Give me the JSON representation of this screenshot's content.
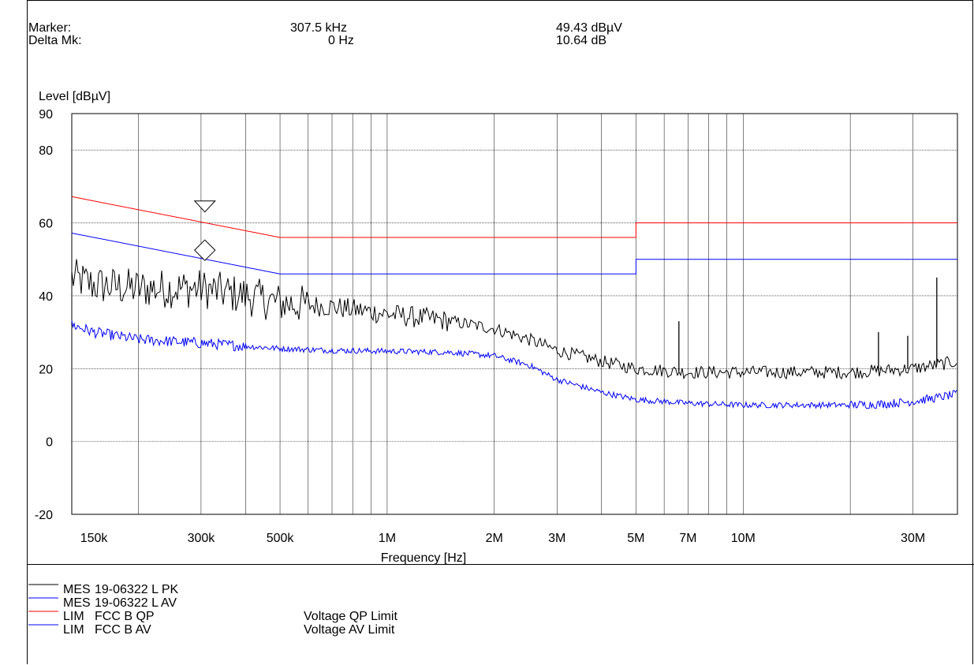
{
  "header": {
    "marker_label": "Marker:",
    "delta_label": "Delta Mk:",
    "marker_freq": "307.5 kHz",
    "delta_freq": "0 Hz",
    "marker_level": "49.43 dBµV",
    "delta_level": "10.64 dB"
  },
  "legend": [
    {
      "col1": "MES",
      "col2": "19-06322 L PK",
      "col3": "",
      "color": "#000000"
    },
    {
      "col1": "MES",
      "col2": "19-06322 L AV",
      "col3": "",
      "color": "#0000ff"
    },
    {
      "col1": "LIM",
      "col2": "FCC B QP",
      "col3": "Voltage QP Limit",
      "color": "#ff0000"
    },
    {
      "col1": "LIM",
      "col2": "FCC B AV",
      "col3": "Voltage AV Limit",
      "color": "#0000ff"
    }
  ],
  "chart_data": {
    "type": "line",
    "ylabel": "Level [dBµV]",
    "xlabel": "Frequency [Hz]",
    "xscale": "log",
    "xlim": [
      130000,
      40000000
    ],
    "ylim": [
      -20,
      90
    ],
    "yticks": [
      -20,
      0,
      20,
      40,
      60,
      80,
      90
    ],
    "xticks": [
      {
        "value": 150000,
        "label": "150k"
      },
      {
        "value": 300000,
        "label": "300k"
      },
      {
        "value": 500000,
        "label": "500k"
      },
      {
        "value": 1000000,
        "label": "1M"
      },
      {
        "value": 2000000,
        "label": "2M"
      },
      {
        "value": 3000000,
        "label": "3M"
      },
      {
        "value": 5000000,
        "label": "5M"
      },
      {
        "value": 7000000,
        "label": "7M"
      },
      {
        "value": 10000000,
        "label": "10M"
      },
      {
        "value": 30000000,
        "label": "30M"
      }
    ],
    "grid": true,
    "colors": {
      "pk": "#000000",
      "av": "#0000ff",
      "qp_limit": "#ff0000",
      "av_limit": "#0000ff"
    },
    "series": [
      {
        "name": "19-06322 L PK",
        "color": "#000000",
        "x": [
          130000,
          150000,
          200000,
          300000,
          400000,
          500000,
          700000,
          1000000,
          1500000,
          2000000,
          2500000,
          3000000,
          4000000,
          5000000,
          7000000,
          10000000,
          15000000,
          20000000,
          25000000,
          30000000,
          35000000,
          40000000
        ],
        "y": [
          45,
          43,
          42,
          42,
          40,
          38,
          37,
          35,
          33,
          31,
          28,
          25,
          22,
          20,
          19,
          19,
          19,
          19,
          19.5,
          20,
          21,
          22
        ]
      },
      {
        "name": "19-06322 L AV",
        "color": "#0000ff",
        "x": [
          130000,
          150000,
          200000,
          300000,
          500000,
          700000,
          1000000,
          1500000,
          2000000,
          2500000,
          3000000,
          4000000,
          5000000,
          7000000,
          10000000,
          15000000,
          20000000,
          25000000,
          30000000,
          35000000,
          40000000
        ],
        "y": [
          32,
          30,
          28,
          27,
          25.5,
          25,
          24.8,
          24.5,
          23.5,
          21,
          17,
          13.5,
          11.5,
          10.5,
          10,
          10,
          10,
          10.3,
          11,
          12,
          13
        ]
      },
      {
        "name": "FCC B QP",
        "color": "#ff0000",
        "x": [
          130000,
          500000,
          500000,
          5000000,
          5000000,
          40000000
        ],
        "y": [
          67.2,
          56,
          56,
          56,
          60,
          60
        ]
      },
      {
        "name": "FCC B AV",
        "color": "#0000ff",
        "x": [
          130000,
          500000,
          500000,
          5000000,
          5000000,
          40000000
        ],
        "y": [
          57.2,
          46,
          46,
          46,
          50,
          50
        ]
      }
    ],
    "spikes": [
      {
        "x": 6600000,
        "y": 33
      },
      {
        "x": 24000000,
        "y": 30
      },
      {
        "x": 29000000,
        "y": 29
      },
      {
        "x": 35000000,
        "y": 45
      }
    ],
    "markers": [
      {
        "shape": "triangle-down",
        "x": 307500,
        "y": 63
      },
      {
        "shape": "diamond",
        "x": 307500,
        "y": 52.5
      }
    ]
  }
}
